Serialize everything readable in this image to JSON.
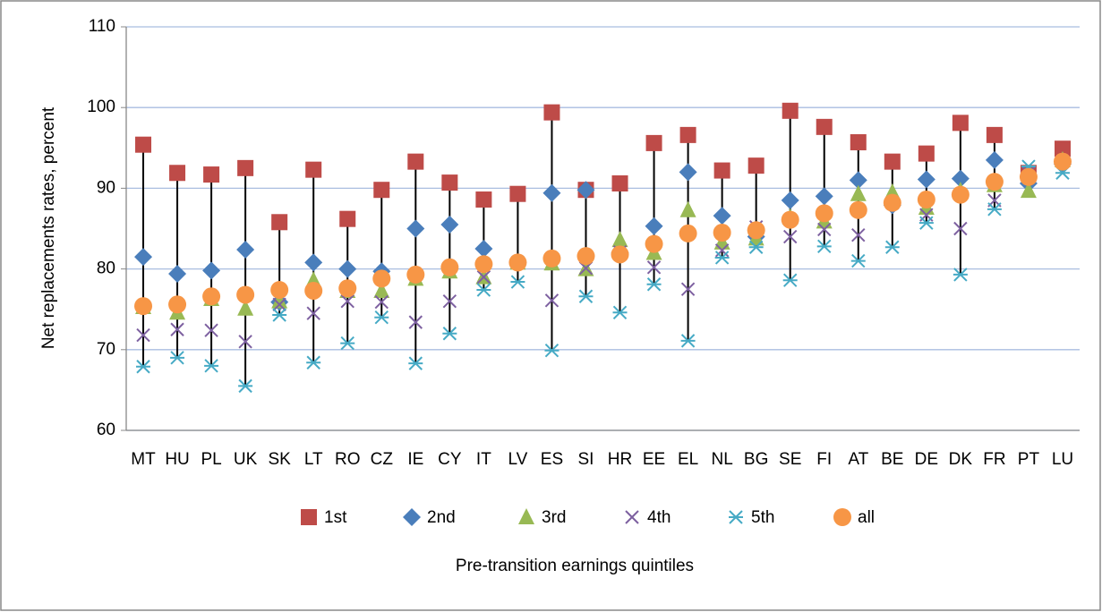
{
  "chart_data": {
    "type": "scatter",
    "y_label": "Net replacements rates, percent",
    "legend_title": "Pre-transition earnings quintiles",
    "categories": [
      "MT",
      "HU",
      "PL",
      "UK",
      "SK",
      "LT",
      "RO",
      "CZ",
      "IE",
      "CY",
      "IT",
      "LV",
      "ES",
      "SI",
      "HR",
      "EE",
      "EL",
      "NL",
      "BG",
      "SE",
      "FI",
      "AT",
      "BE",
      "DE",
      "DK",
      "FR",
      "PT",
      "LU"
    ],
    "ylim": [
      60,
      110
    ],
    "yticks": [
      60,
      70,
      80,
      90,
      100,
      110
    ],
    "grid": true,
    "high_low_lines": true,
    "series": [
      {
        "name": "1st",
        "color": "#be4b48",
        "marker": "square",
        "values": [
          95.4,
          91.9,
          91.7,
          92.5,
          85.8,
          92.3,
          86.2,
          89.8,
          93.3,
          90.7,
          88.6,
          89.3,
          99.4,
          89.8,
          90.6,
          95.6,
          96.6,
          92.2,
          92.8,
          99.6,
          97.6,
          95.7,
          93.3,
          94.3,
          98.1,
          96.6,
          91.9,
          94.9
        ]
      },
      {
        "name": "2nd",
        "color": "#4a7ebb",
        "marker": "diamond",
        "values": [
          81.5,
          79.4,
          79.8,
          82.4,
          75.9,
          80.8,
          80.0,
          79.7,
          85.0,
          85.5,
          82.5,
          80.8,
          89.4,
          89.8,
          82.0,
          85.3,
          92.0,
          86.6,
          84.0,
          88.5,
          89.0,
          91.0,
          87.9,
          91.1,
          91.2,
          93.5,
          90.6,
          93.0
        ]
      },
      {
        "name": "3rd",
        "color": "#98b954",
        "marker": "triangle",
        "values": [
          75.3,
          74.6,
          76.3,
          75.1,
          76.0,
          78.6,
          77.3,
          77.3,
          78.8,
          79.7,
          79.0,
          80.8,
          80.7,
          80.0,
          83.6,
          82.0,
          87.3,
          83.3,
          83.8,
          86.4,
          85.9,
          89.3,
          89.5,
          87.6,
          89.7,
          90.4,
          89.7,
          93.5
        ]
      },
      {
        "name": "4th",
        "color": "#7d60a0",
        "marker": "x",
        "values": [
          71.8,
          72.5,
          72.4,
          71.0,
          75.6,
          74.5,
          76.0,
          75.9,
          73.4,
          76.0,
          79.0,
          80.8,
          76.1,
          80.1,
          82.1,
          80.2,
          77.5,
          82.3,
          85.2,
          84.0,
          84.9,
          84.2,
          88.2,
          86.7,
          85.0,
          88.5,
          91.9,
          93.3
        ]
      },
      {
        "name": "5th",
        "color": "#46aac5",
        "marker": "asterisk",
        "values": [
          67.9,
          69.0,
          68.0,
          65.5,
          74.3,
          68.4,
          70.8,
          74.0,
          68.3,
          72.0,
          77.4,
          78.4,
          69.9,
          76.6,
          74.6,
          78.1,
          71.1,
          81.4,
          82.7,
          78.6,
          82.8,
          81.0,
          82.7,
          85.7,
          79.3,
          87.4,
          92.7,
          91.9
        ]
      },
      {
        "name": "all",
        "color": "#f79646",
        "marker": "circle",
        "values": [
          75.4,
          75.6,
          76.6,
          76.8,
          77.4,
          77.3,
          77.6,
          78.8,
          79.3,
          80.2,
          80.6,
          80.8,
          81.3,
          81.6,
          81.8,
          83.1,
          84.4,
          84.5,
          84.8,
          86.1,
          86.9,
          87.3,
          88.2,
          88.6,
          89.2,
          90.8,
          91.4,
          93.3
        ]
      }
    ]
  }
}
